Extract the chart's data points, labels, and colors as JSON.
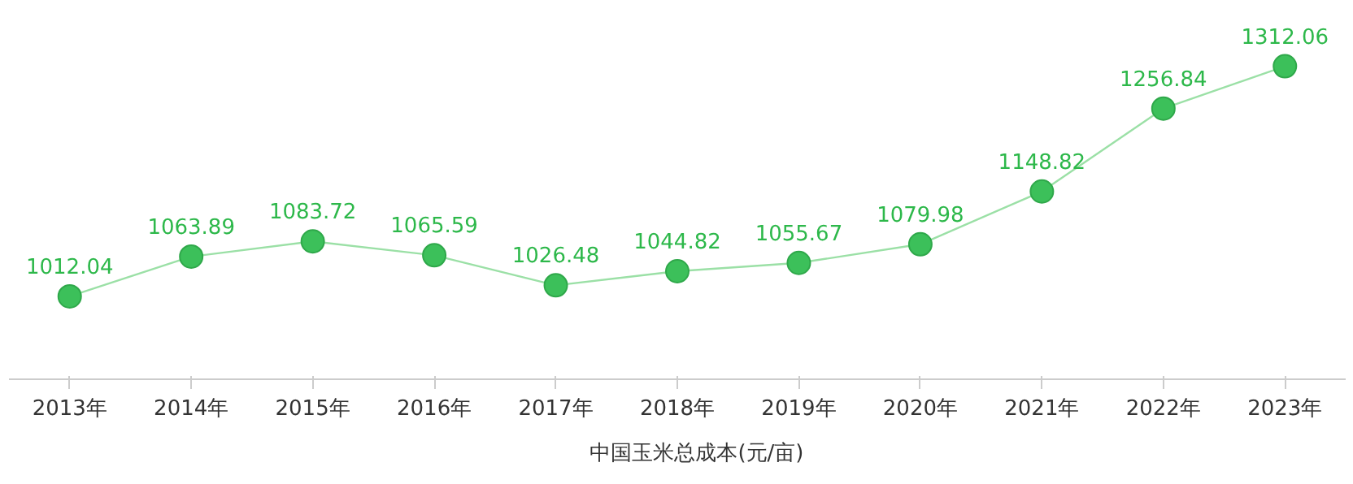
{
  "chart_data": {
    "type": "line",
    "categories": [
      "2013年",
      "2014年",
      "2015年",
      "2016年",
      "2017年",
      "2018年",
      "2019年",
      "2020年",
      "2021年",
      "2022年",
      "2023年"
    ],
    "series": [
      {
        "name": "中国玉米总成本(元/亩)",
        "color": "#3cc05a",
        "values": [
          1012.04,
          1063.89,
          1083.72,
          1065.59,
          1026.48,
          1044.82,
          1055.67,
          1079.98,
          1148.82,
          1256.84,
          1312.06
        ]
      }
    ],
    "data_labels": true,
    "marker": "circle",
    "line_style": "solid",
    "legend": "bottom",
    "grid": false,
    "tick_labels": "x"
  }
}
